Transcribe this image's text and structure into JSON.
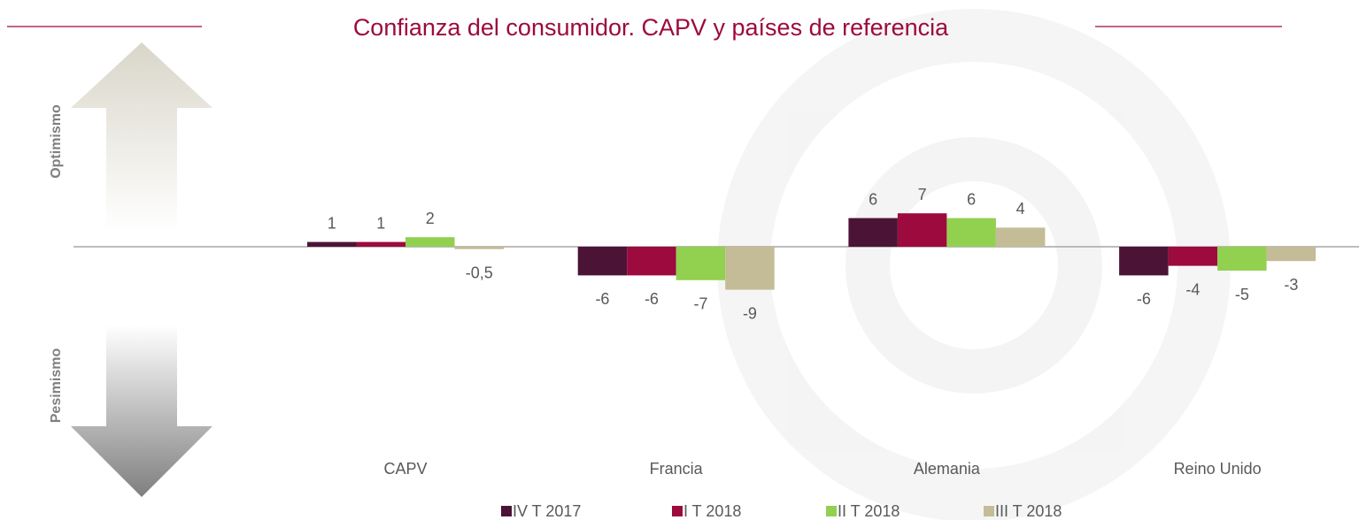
{
  "chart_data": {
    "type": "bar",
    "title": "Confianza del consumidor. CAPV y países de referencia",
    "annotations": [
      "Optimismo",
      "Pesimismo"
    ],
    "categories": [
      "CAPV",
      "Francia",
      "Alemania",
      "Reino Unido"
    ],
    "series": [
      {
        "name": "IV T 2017",
        "color": "#4b1436",
        "values": [
          1,
          -6,
          6,
          -6
        ]
      },
      {
        "name": "I T 2018",
        "color": "#9c0a3e",
        "values": [
          1,
          -6,
          7,
          -4
        ]
      },
      {
        "name": "II T 2018",
        "color": "#92d050",
        "values": [
          2,
          -7,
          6,
          -5
        ]
      },
      {
        "name": "III T 2018",
        "color": "#c4bc96",
        "values": [
          -0.5,
          -9,
          4,
          -3
        ],
        "value_labels": [
          "-0,5",
          "-9",
          "4",
          "-3"
        ]
      }
    ]
  }
}
